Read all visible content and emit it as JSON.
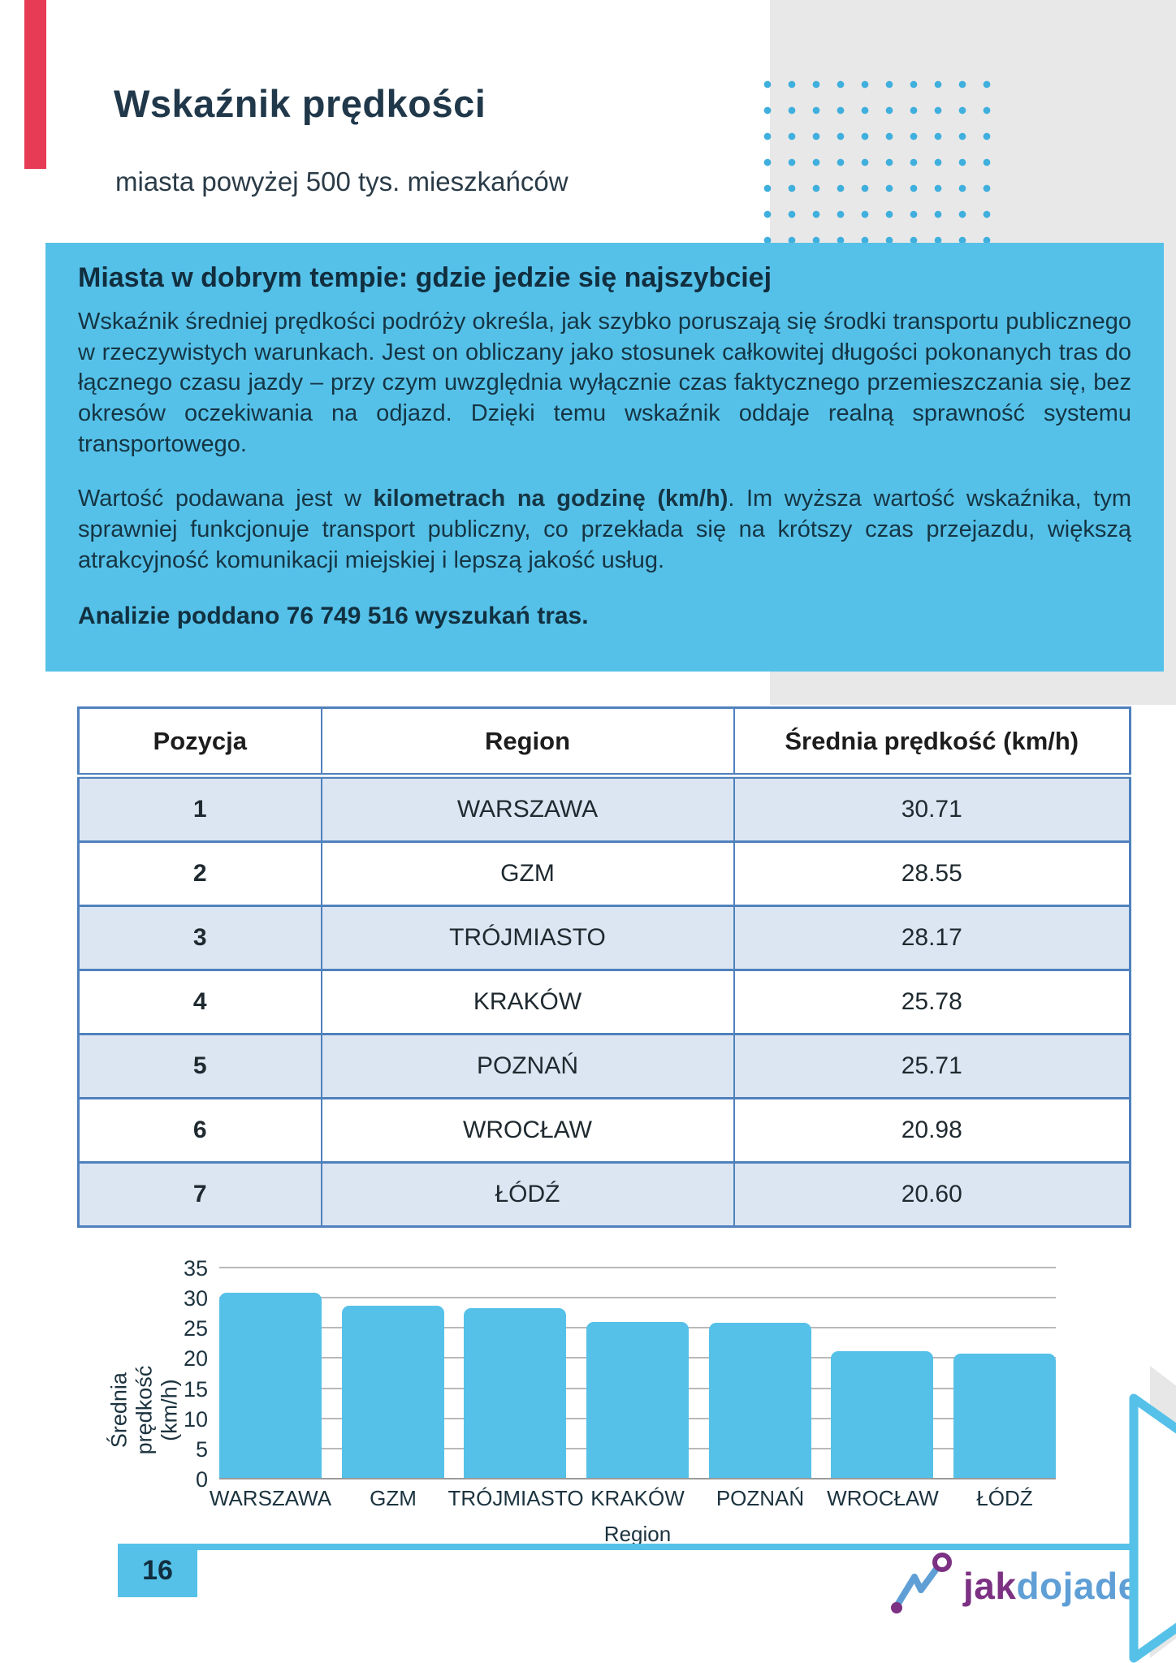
{
  "header": {
    "title": "Wskaźnik prędkości",
    "subtitle": "miasta powyżej 500 tys. mieszkańców"
  },
  "info_box": {
    "heading": "Miasta w dobrym tempie: gdzie jedzie się najszybciej",
    "paragraph1": "Wskaźnik średniej prędkości podróży określa, jak szybko poruszają się środki transportu publicznego w rzeczywistych warunkach. Jest on obliczany jako stosunek całkowitej długości pokonanych tras do łącznego czasu jazdy – przy czym uwzględnia wyłącznie czas faktycznego przemieszczania się, bez okresów oczekiwania na odjazd. Dzięki temu wskaźnik oddaje realną sprawność systemu transportowego.",
    "paragraph2_prefix": "Wartość podawana jest w ",
    "paragraph2_bold": "kilometrach na godzinę (km/h)",
    "paragraph2_suffix": ". Im wyższa wartość wskaźnika, tym sprawniej funkcjonuje transport publiczny, co przekłada się na krótszy czas przejazdu, większą atrakcyjność komunikacji miejskiej i lepszą jakość usług.",
    "analysis_note": "Analizie poddano 76 749 516 wyszukań tras."
  },
  "table": {
    "columns": [
      "Pozycja",
      "Region",
      "Średnia prędkość (km/h)"
    ],
    "rows": [
      [
        "1",
        "WARSZAWA",
        "30.71"
      ],
      [
        "2",
        "GZM",
        "28.55"
      ],
      [
        "3",
        "TRÓJMIASTO",
        "28.17"
      ],
      [
        "4",
        "KRAKÓW",
        "25.78"
      ],
      [
        "5",
        "POZNAŃ",
        "25.71"
      ],
      [
        "6",
        "WROCŁAW",
        "20.98"
      ],
      [
        "7",
        "ŁÓDŹ",
        "20.60"
      ]
    ]
  },
  "chart_data": {
    "type": "bar",
    "categories": [
      "WARSZAWA",
      "GZM",
      "TRÓJMIASTO",
      "KRAKÓW",
      "POZNAŃ",
      "WROCŁAW",
      "ŁÓDŹ"
    ],
    "values": [
      30.71,
      28.55,
      28.17,
      25.78,
      25.71,
      20.98,
      20.6
    ],
    "title": "",
    "xlabel": "Region",
    "ylabel_line1": "Średnia prędkość",
    "ylabel_line2": "(km/h)",
    "ylabel": "Średnia prędkość (km/h)",
    "ylim": [
      0,
      35
    ],
    "yticks": [
      "35",
      "30",
      "25",
      "20",
      "15",
      "10",
      "5",
      "0"
    ],
    "grid": true,
    "legend": false,
    "bar_color": "#56c1e8"
  },
  "footer": {
    "page_number": "16",
    "logo_jak": "jak",
    "logo_dojade": "dojade"
  },
  "colors": {
    "accent_blue": "#56c1e8",
    "dot_blue": "#3fafdd",
    "table_border_blue": "#4f81bd",
    "table_row_shade": "#dce6f2",
    "deco_gray": "#e8e8e8",
    "red_accent": "#e63a55",
    "logo_purple": "#7c3183",
    "logo_blue": "#5f9fd6",
    "text_navy": "#16323f"
  }
}
